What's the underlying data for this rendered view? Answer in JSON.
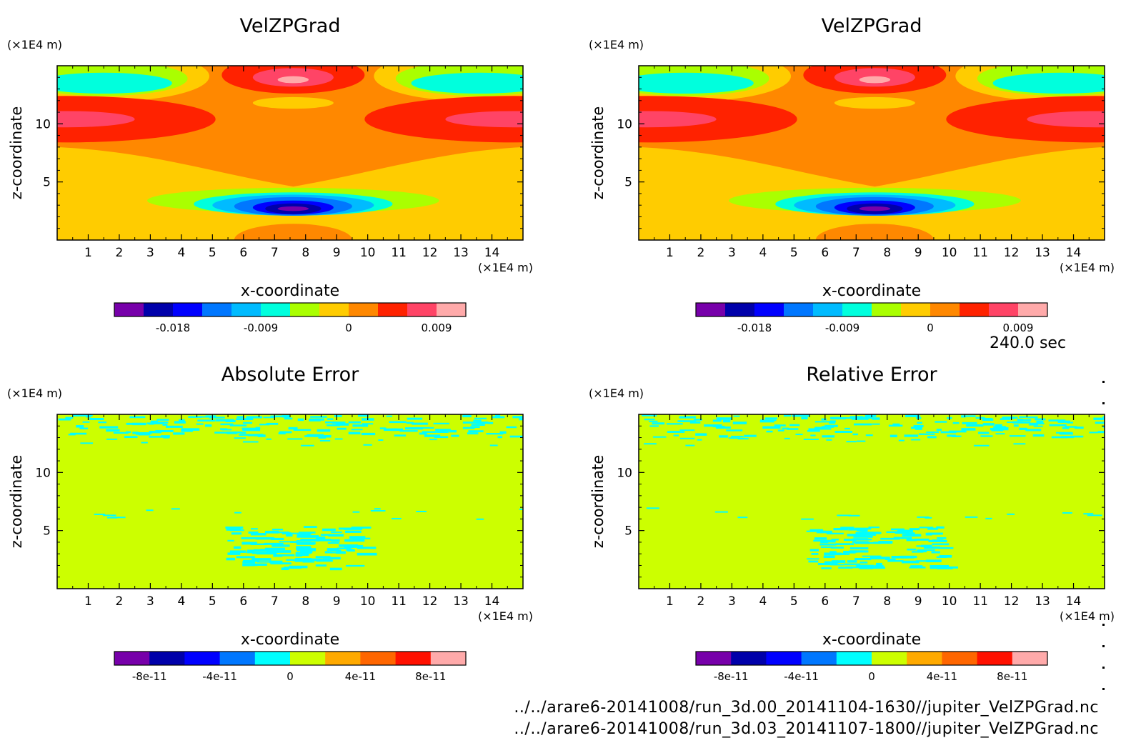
{
  "time_label": "240.0 sec",
  "files": [
    "../../arare6-20141008/run_3d.00_20141104-1630//jupiter_VelZPGrad.nc",
    "../../arare6-20141008/run_3d.03_20141107-1800//jupiter_VelZPGrad.nc"
  ],
  "chart_data": [
    {
      "type": "heatmap",
      "title": "VelZPGrad",
      "xlabel": "x-coordinate",
      "ylabel": "z-coordinate",
      "x_unit": "(×1E4 m)",
      "y_unit": "(×1E4 m)",
      "xlim": [
        0,
        15
      ],
      "ylim": [
        0,
        15
      ],
      "x_ticks": [
        1,
        2,
        3,
        4,
        5,
        6,
        7,
        8,
        9,
        10,
        11,
        12,
        13,
        14
      ],
      "y_ticks": [
        5,
        10
      ],
      "colorbar": {
        "colors": [
          "#7700aa",
          "#0000aa",
          "#0000ff",
          "#0077ff",
          "#00bbff",
          "#00ffdd",
          "#aaff00",
          "#ffcc00",
          "#ff8800",
          "#ff2200",
          "#ff4466",
          "#ffaaaa"
        ],
        "tick_labels": [
          "-0.018",
          "-0.009",
          "0",
          "0.009"
        ],
        "tick_positions": [
          2,
          5,
          8,
          11
        ]
      }
    },
    {
      "type": "heatmap",
      "title": "VelZPGrad",
      "xlabel": "x-coordinate",
      "ylabel": "z-coordinate",
      "x_unit": "(×1E4 m)",
      "y_unit": "(×1E4 m)",
      "xlim": [
        0,
        15
      ],
      "ylim": [
        0,
        15
      ],
      "x_ticks": [
        1,
        2,
        3,
        4,
        5,
        6,
        7,
        8,
        9,
        10,
        11,
        12,
        13,
        14
      ],
      "y_ticks": [
        5,
        10
      ],
      "colorbar": {
        "colors": [
          "#7700aa",
          "#0000aa",
          "#0000ff",
          "#0077ff",
          "#00bbff",
          "#00ffdd",
          "#aaff00",
          "#ffcc00",
          "#ff8800",
          "#ff2200",
          "#ff4466",
          "#ffaaaa"
        ],
        "tick_labels": [
          "-0.018",
          "-0.009",
          "0",
          "0.009"
        ],
        "tick_positions": [
          2,
          5,
          8,
          11
        ]
      }
    },
    {
      "type": "heatmap",
      "title": "Absolute Error",
      "xlabel": "x-coordinate",
      "ylabel": "z-coordinate",
      "x_unit": "(×1E4 m)",
      "y_unit": "(×1E4 m)",
      "xlim": [
        0,
        15
      ],
      "ylim": [
        0,
        15
      ],
      "x_ticks": [
        1,
        2,
        3,
        4,
        5,
        6,
        7,
        8,
        9,
        10,
        11,
        12,
        13,
        14
      ],
      "y_ticks": [
        5,
        10
      ],
      "colorbar": {
        "colors": [
          "#7700aa",
          "#0000aa",
          "#0000ff",
          "#0077ff",
          "#00ffff",
          "#ccff00",
          "#ffaa00",
          "#ff6600",
          "#ff1100",
          "#ffaaaa"
        ],
        "tick_labels": [
          "-8e-11",
          "-4e-11",
          "0",
          "4e-11",
          "8e-11"
        ],
        "tick_positions": [
          1,
          3,
          5,
          7,
          9
        ]
      }
    },
    {
      "type": "heatmap",
      "title": "Relative Error",
      "xlabel": "x-coordinate",
      "ylabel": "z-coordinate",
      "x_unit": "(×1E4 m)",
      "y_unit": "(×1E4 m)",
      "xlim": [
        0,
        15
      ],
      "ylim": [
        0,
        15
      ],
      "x_ticks": [
        1,
        2,
        3,
        4,
        5,
        6,
        7,
        8,
        9,
        10,
        11,
        12,
        13,
        14
      ],
      "y_ticks": [
        5,
        10
      ],
      "colorbar": {
        "colors": [
          "#7700aa",
          "#0000aa",
          "#0000ff",
          "#0077ff",
          "#00ffff",
          "#ccff00",
          "#ffaa00",
          "#ff6600",
          "#ff1100",
          "#ffaaaa"
        ],
        "tick_labels": [
          "-8e-11",
          "-4e-11",
          "0",
          "4e-11",
          "8e-11"
        ],
        "tick_positions": [
          1,
          3,
          5,
          7,
          9
        ]
      }
    }
  ]
}
